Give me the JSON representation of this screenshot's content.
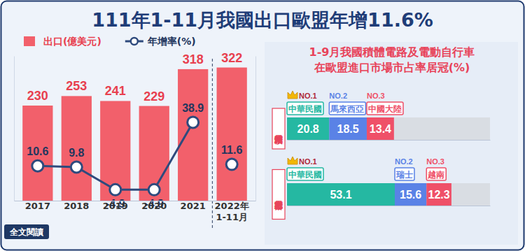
{
  "chart_data": [
    {
      "type": "bar",
      "title": "111年1-11月我國出口歐盟年增11.6%",
      "categories": [
        "2017",
        "2018",
        "2019",
        "2020",
        "2021",
        "2022年\n1-11月"
      ],
      "series": [
        {
          "name": "出口(億美元)",
          "type": "bar",
          "color": "#f2606b",
          "values": [
            230,
            253,
            241,
            229,
            318,
            322
          ]
        },
        {
          "name": "年增率(%)",
          "type": "line",
          "axis": "y2",
          "color": "#2e4a7d",
          "marker": "circle",
          "values": [
            10.6,
            9.8,
            -4.9,
            -4.9,
            38.9,
            11.6
          ]
        }
      ],
      "ylim": [
        0,
        350
      ],
      "yticks": [],
      "y2lim": [
        -12,
        82
      ],
      "y2ticks": [],
      "tick_labels": "x",
      "data_labels": true,
      "legend": "top-left"
    },
    {
      "type": "bar",
      "orientation": "horizontal",
      "stacked": true,
      "title": "1-9月我國積體電路及電動自行車\n在歐盟進口市場市占率居冠(%)",
      "categories": [
        "積體電路"
      ],
      "annotations": [
        "NO.1",
        "NO.2",
        "NO.3"
      ],
      "series": [
        {
          "name": "中華民國",
          "color": "#25b8a2",
          "values": [
            20.8
          ]
        },
        {
          "name": "馬來西亞",
          "color": "#5a82e6",
          "values": [
            18.5
          ]
        },
        {
          "name": "中國大陸",
          "color": "#ef5068",
          "values": [
            13.4
          ]
        }
      ],
      "xlim": [
        0,
        100
      ],
      "xticks": [],
      "tick_labels": "y",
      "data_labels": true
    },
    {
      "type": "bar",
      "orientation": "horizontal",
      "stacked": true,
      "categories": [
        "電動自行車"
      ],
      "annotations": [
        "NO.1",
        "NO.2",
        "NO.3"
      ],
      "series": [
        {
          "name": "中華民國",
          "color": "#25b8a2",
          "values": [
            53.1
          ]
        },
        {
          "name": "瑞士",
          "color": "#5a82e6",
          "values": [
            15.6
          ]
        },
        {
          "name": "越南",
          "color": "#ef5068",
          "values": [
            12.3
          ]
        }
      ],
      "xlim": [
        0,
        100
      ],
      "xticks": [],
      "tick_labels": "y",
      "data_labels": true
    }
  ],
  "link_text": "全文閱讀"
}
